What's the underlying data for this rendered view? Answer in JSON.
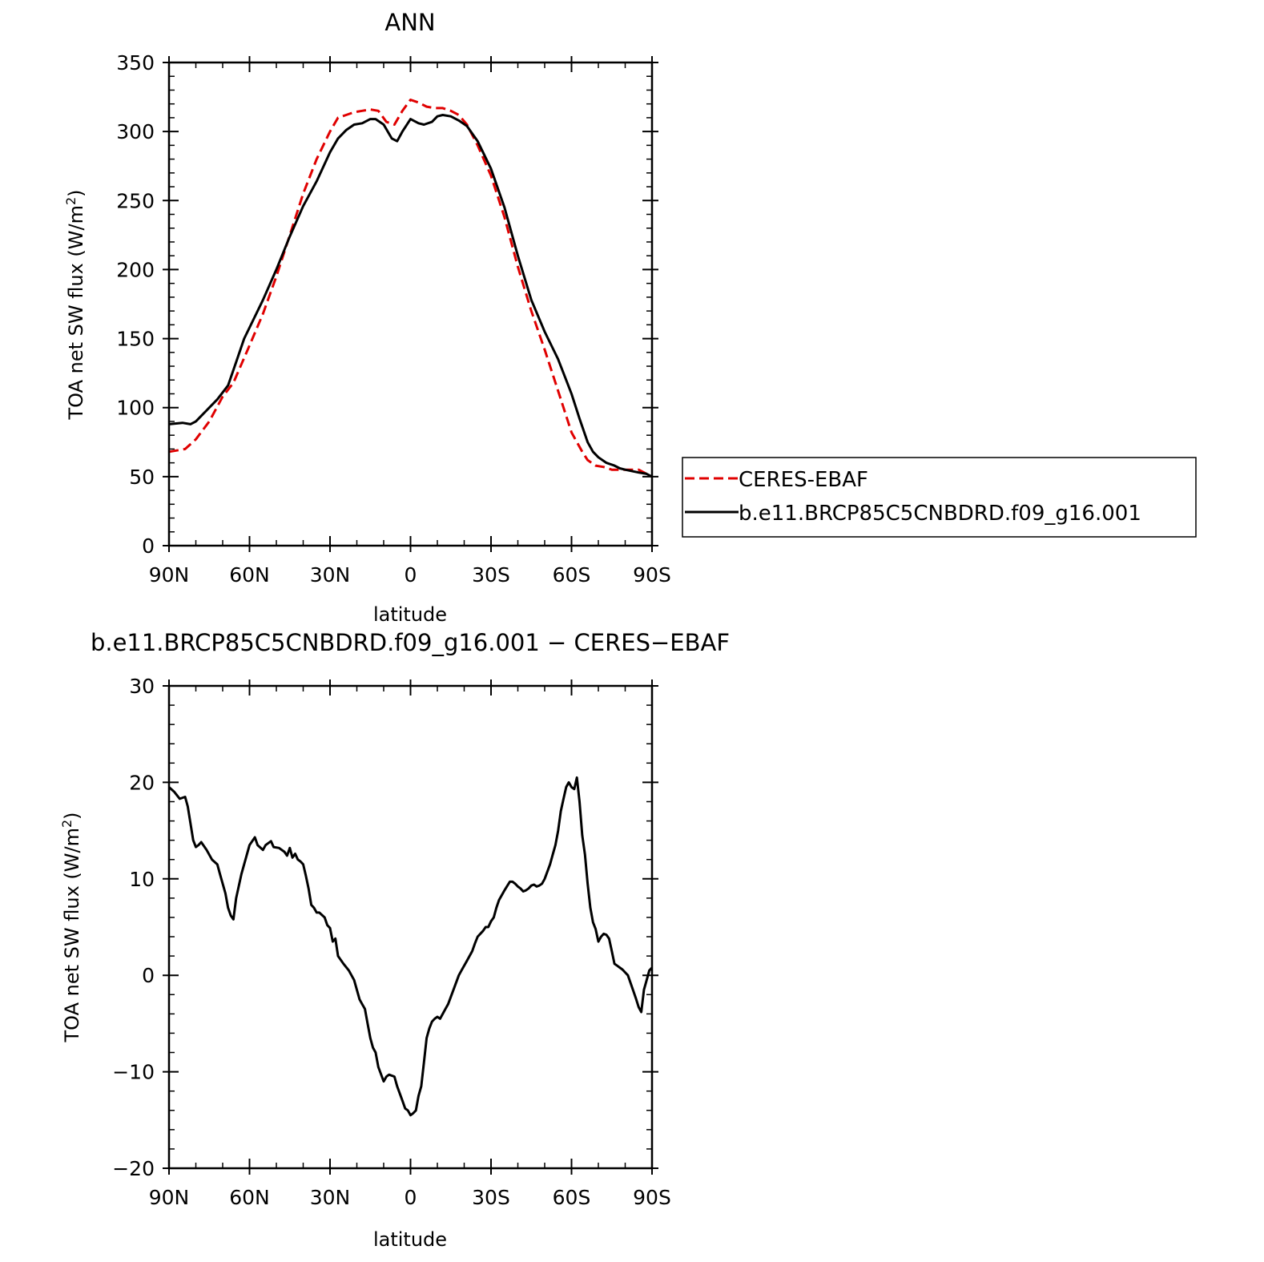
{
  "chart_data": [
    {
      "type": "line",
      "title": "ANN",
      "xlabel": "latitude",
      "ylabel": "TOA net SW flux (W/m²)",
      "ylabel_parts": {
        "pre": "TOA net SW flux (W/m",
        "sup": "2",
        "post": ")"
      },
      "xlim": [
        -90,
        90
      ],
      "ylim": [
        0,
        350
      ],
      "xticks": [
        {
          "value": -90,
          "label": "90N"
        },
        {
          "value": -60,
          "label": "60N"
        },
        {
          "value": -30,
          "label": "30N"
        },
        {
          "value": 0,
          "label": "0"
        },
        {
          "value": 30,
          "label": "30S"
        },
        {
          "value": 60,
          "label": "60S"
        },
        {
          "value": 90,
          "label": "90S"
        }
      ],
      "yticks": [
        0,
        50,
        100,
        150,
        200,
        250,
        300,
        350
      ],
      "grid": false,
      "legend": "right-outside",
      "series": [
        {
          "name": "CERES-EBAF",
          "color": "#e00000",
          "dash": true,
          "x": [
            -90,
            -84,
            -80,
            -75,
            -70,
            -66,
            -60,
            -55,
            -50,
            -45,
            -40,
            -35,
            -30,
            -27,
            -24,
            -21,
            -18,
            -15,
            -12,
            -9,
            -6,
            -3,
            0,
            3,
            6,
            9,
            12,
            15,
            18,
            21,
            25,
            30,
            35,
            40,
            45,
            50,
            55,
            60,
            64,
            66,
            69,
            72,
            75,
            80,
            85,
            88,
            90
          ],
          "y": [
            68,
            70,
            77,
            90,
            108,
            118,
            145,
            168,
            195,
            225,
            255,
            280,
            300,
            310,
            312,
            314,
            315,
            316,
            315,
            307,
            305,
            315,
            323,
            321,
            318,
            317,
            317,
            315,
            312,
            305,
            290,
            268,
            238,
            202,
            170,
            142,
            112,
            82,
            68,
            62,
            58,
            57,
            55,
            55,
            55,
            52,
            50
          ]
        },
        {
          "name": "b.e11.BRCP85C5CNBDRD.f09_g16.001",
          "color": "#000000",
          "dash": false,
          "x": [
            -90,
            -85,
            -82,
            -80,
            -77,
            -72,
            -68,
            -65,
            -62,
            -59,
            -55,
            -50,
            -45,
            -40,
            -35,
            -30,
            -27,
            -24,
            -21,
            -18,
            -15,
            -13,
            -10,
            -7,
            -5,
            -3,
            0,
            3,
            5,
            8,
            10,
            12,
            15,
            18,
            21,
            25,
            30,
            35,
            40,
            45,
            50,
            55,
            60,
            63,
            66,
            68,
            70,
            73,
            76,
            78,
            80,
            85,
            88,
            90
          ],
          "y": [
            88,
            89,
            88,
            90,
            96,
            106,
            116,
            133,
            150,
            162,
            178,
            200,
            224,
            246,
            264,
            285,
            295,
            301,
            305,
            306,
            309,
            309,
            305,
            295,
            293,
            300,
            309,
            306,
            305,
            307,
            311,
            312,
            311,
            308,
            304,
            293,
            273,
            245,
            210,
            178,
            155,
            135,
            110,
            92,
            75,
            68,
            64,
            60,
            58,
            56,
            55,
            53,
            52,
            50
          ]
        }
      ]
    },
    {
      "type": "line",
      "title": "b.e11.BRCP85C5CNBDRD.f09_g16.001 − CERES−EBAF",
      "xlabel": "latitude",
      "ylabel": "TOA net SW flux (W/m²)",
      "ylabel_parts": {
        "pre": "TOA net SW flux (W/m",
        "sup": "2",
        "post": ")"
      },
      "xlim": [
        -90,
        90
      ],
      "ylim": [
        -20,
        30
      ],
      "xticks": [
        {
          "value": -90,
          "label": "90N"
        },
        {
          "value": -60,
          "label": "60N"
        },
        {
          "value": -30,
          "label": "30N"
        },
        {
          "value": 0,
          "label": "0"
        },
        {
          "value": 30,
          "label": "30S"
        },
        {
          "value": 60,
          "label": "60S"
        },
        {
          "value": 90,
          "label": "90S"
        }
      ],
      "yticks": [
        -20,
        -10,
        0,
        10,
        20,
        30
      ],
      "grid": false,
      "series": [
        {
          "color": "#000000",
          "dash": false,
          "x": [
            -90,
            -88,
            -86,
            -84,
            -83,
            -81,
            -80,
            -79,
            -78,
            -76,
            -74,
            -72,
            -71,
            -69,
            -68,
            -67,
            -66,
            -65,
            -63,
            -62,
            -60,
            -58,
            -57,
            -55,
            -54,
            -52,
            -51,
            -49,
            -47,
            -46,
            -45,
            -44,
            -43,
            -42,
            -41,
            -40,
            -39,
            -38,
            -37,
            -36,
            -35,
            -34,
            -32,
            -31,
            -30,
            -29,
            -28,
            -27,
            -25,
            -23,
            -21,
            -19,
            -18,
            -17,
            -16,
            -15,
            -14,
            -13,
            -12,
            -10,
            -9,
            -8,
            -6,
            -5,
            -3,
            -2,
            -1,
            0,
            1,
            2,
            3,
            4,
            5,
            6,
            7,
            8,
            9,
            10,
            11,
            12,
            13,
            14,
            16,
            18,
            19,
            21,
            22,
            23,
            24,
            25,
            27,
            28,
            29,
            30,
            31,
            32,
            33,
            34,
            35,
            37,
            38,
            39,
            40,
            41,
            42,
            43,
            44,
            45,
            46,
            47,
            48,
            49,
            50,
            52,
            53,
            54,
            55,
            56,
            57,
            58,
            59,
            60,
            61,
            62,
            63,
            64,
            65,
            66,
            67,
            68,
            69,
            70,
            71,
            72,
            73,
            74,
            75,
            76,
            77,
            78,
            79,
            80,
            81,
            82,
            83,
            84,
            85,
            86,
            87,
            88,
            89,
            90
          ],
          "y": [
            19.5,
            19,
            18.3,
            18.5,
            17.5,
            14,
            13.3,
            13.5,
            13.8,
            13,
            12,
            11.5,
            10.5,
            8.5,
            7,
            6.2,
            5.8,
            8,
            10.5,
            11.5,
            13.5,
            14.3,
            13.5,
            13,
            13.5,
            13.9,
            13.3,
            13.2,
            12.8,
            12.4,
            13.2,
            12.2,
            12.6,
            12.0,
            11.8,
            11.5,
            10.3,
            9,
            7.3,
            7,
            6.5,
            6.5,
            6,
            5.2,
            4.9,
            3.5,
            3.8,
            2,
            1.2,
            0.5,
            -0.5,
            -2.5,
            -3,
            -3.5,
            -5,
            -6.5,
            -7.5,
            -8,
            -9.5,
            -11,
            -10.5,
            -10.3,
            -10.5,
            -11.5,
            -13,
            -13.8,
            -14,
            -14.5,
            -14.3,
            -14,
            -12.5,
            -11.5,
            -9,
            -6.5,
            -5.5,
            -4.8,
            -4.5,
            -4.3,
            -4.5,
            -4,
            -3.5,
            -3,
            -1.5,
            0,
            0.5,
            1.5,
            2,
            2.5,
            3.3,
            4,
            4.6,
            5,
            5,
            5.6,
            6,
            7,
            7.8,
            8.3,
            8.8,
            9.7,
            9.7,
            9.5,
            9.2,
            9,
            8.7,
            8.8,
            9,
            9.3,
            9.4,
            9.2,
            9.3,
            9.5,
            10,
            11.5,
            12.5,
            13.5,
            15,
            17,
            18.3,
            19.5,
            20,
            19.5,
            19.3,
            20.5,
            18,
            14.5,
            12.5,
            9.5,
            7,
            5.5,
            4.8,
            3.5,
            4,
            4.3,
            4.2,
            3.8,
            2.5,
            1.2,
            1,
            0.8,
            0.6,
            0.3,
            0,
            -0.8,
            -1.6,
            -2.4,
            -3.3,
            -3.8,
            -1.5,
            -0.5,
            0.5,
            0.8
          ]
        }
      ]
    }
  ]
}
